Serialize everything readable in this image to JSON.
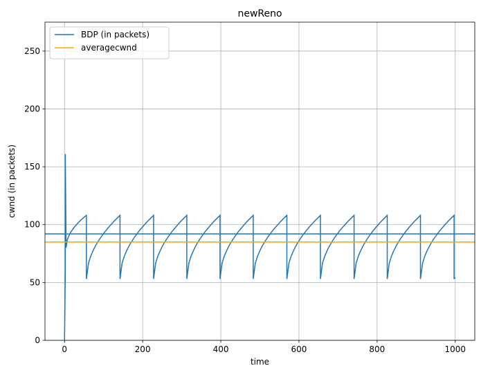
{
  "chart_data": {
    "type": "line",
    "title": "newReno",
    "xlabel": "time",
    "ylabel": "cwnd (in packets)",
    "xlim": [
      -50,
      1050
    ],
    "ylim": [
      0,
      275
    ],
    "xticks": [
      0,
      200,
      400,
      600,
      800,
      1000
    ],
    "yticks": [
      0,
      50,
      100,
      150,
      200,
      250
    ],
    "grid": true,
    "legend_position": "upper-left",
    "series": [
      {
        "name": "BDP (in packets)",
        "kind": "sawtooth",
        "color": "#1f77b4",
        "x": [
          0,
          2,
          2,
          4,
          56,
          56,
          142,
          142,
          228,
          228,
          313,
          313,
          398,
          398,
          483,
          483,
          569,
          569,
          655,
          655,
          741,
          741,
          826,
          826,
          911,
          911,
          997,
          997,
          1000
        ],
        "y": [
          0,
          60,
          161,
          80,
          108,
          53,
          108,
          53,
          108,
          53,
          108,
          53,
          108,
          53,
          108,
          53,
          108,
          53,
          108,
          53,
          108,
          53,
          108,
          53,
          108,
          53,
          108,
          53,
          54
        ],
        "hline": 92
      },
      {
        "name": "averagecwnd",
        "kind": "hline",
        "color": "#ffa500",
        "y": 85
      }
    ]
  }
}
